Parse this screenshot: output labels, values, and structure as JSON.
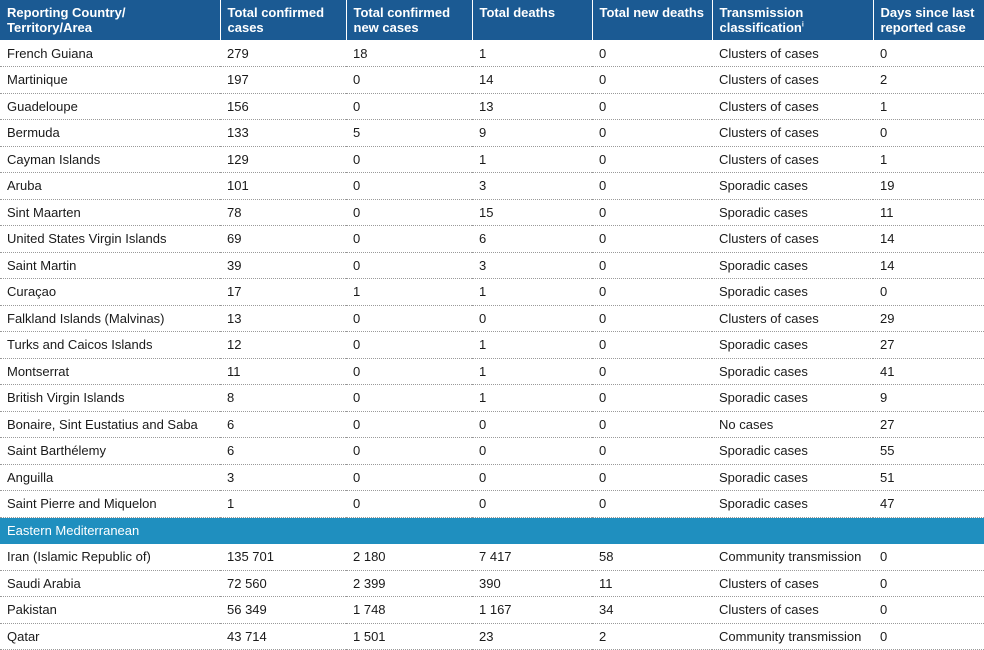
{
  "headers": [
    "Reporting Country/ Territory/Area",
    "Total confirmed cases",
    "Total confirmed new cases",
    "Total deaths",
    "Total new deaths",
    "Transmission classification",
    "Days since last reported case"
  ],
  "header_footnote": "i",
  "rows_group1": [
    [
      "French Guiana",
      "279",
      "18",
      "1",
      "0",
      "Clusters of cases",
      "0"
    ],
    [
      "Martinique",
      "197",
      "0",
      "14",
      "0",
      "Clusters of cases",
      "2"
    ],
    [
      "Guadeloupe",
      "156",
      "0",
      "13",
      "0",
      "Clusters of cases",
      "1"
    ],
    [
      "Bermuda",
      "133",
      "5",
      "9",
      "0",
      "Clusters of cases",
      "0"
    ],
    [
      "Cayman Islands",
      "129",
      "0",
      "1",
      "0",
      "Clusters of cases",
      "1"
    ],
    [
      "Aruba",
      "101",
      "0",
      "3",
      "0",
      "Sporadic cases",
      "19"
    ],
    [
      "Sint Maarten",
      "78",
      "0",
      "15",
      "0",
      "Sporadic cases",
      "11"
    ],
    [
      "United States Virgin Islands",
      "69",
      "0",
      "6",
      "0",
      "Clusters of cases",
      "14"
    ],
    [
      "Saint Martin",
      "39",
      "0",
      "3",
      "0",
      "Sporadic cases",
      "14"
    ],
    [
      "Curaçao",
      "17",
      "1",
      "1",
      "0",
      "Sporadic cases",
      "0"
    ],
    [
      "Falkland Islands (Malvinas)",
      "13",
      "0",
      "0",
      "0",
      "Clusters of cases",
      "29"
    ],
    [
      "Turks and Caicos Islands",
      "12",
      "0",
      "1",
      "0",
      "Sporadic cases",
      "27"
    ],
    [
      "Montserrat",
      "11",
      "0",
      "1",
      "0",
      "Sporadic cases",
      "41"
    ],
    [
      "British Virgin Islands",
      "8",
      "0",
      "1",
      "0",
      "Sporadic cases",
      "9"
    ],
    [
      "Bonaire, Sint Eustatius and Saba",
      "6",
      "0",
      "0",
      "0",
      "No cases",
      "27"
    ],
    [
      "Saint Barthélemy",
      "6",
      "0",
      "0",
      "0",
      "Sporadic cases",
      "55"
    ],
    [
      "Anguilla",
      "3",
      "0",
      "0",
      "0",
      "Sporadic cases",
      "51"
    ],
    [
      "Saint Pierre and Miquelon",
      "1",
      "0",
      "0",
      "0",
      "Sporadic cases",
      "47"
    ]
  ],
  "region_label": "Eastern Mediterranean",
  "rows_group2": [
    [
      "Iran (Islamic Republic of)",
      "135 701",
      "2 180",
      "7 417",
      "58",
      "Community transmission",
      "0"
    ],
    [
      "Saudi Arabia",
      "72 560",
      "2 399",
      "390",
      "11",
      "Clusters of cases",
      "0"
    ],
    [
      "Pakistan",
      "56 349",
      "1 748",
      "1 167",
      "34",
      "Clusters of cases",
      "0"
    ],
    [
      "Qatar",
      "43 714",
      "1 501",
      "23",
      "2",
      "Community transmission",
      "0"
    ]
  ],
  "colors": {
    "header_bg": "#1b5a93",
    "region_bg": "#1f8fbf"
  }
}
